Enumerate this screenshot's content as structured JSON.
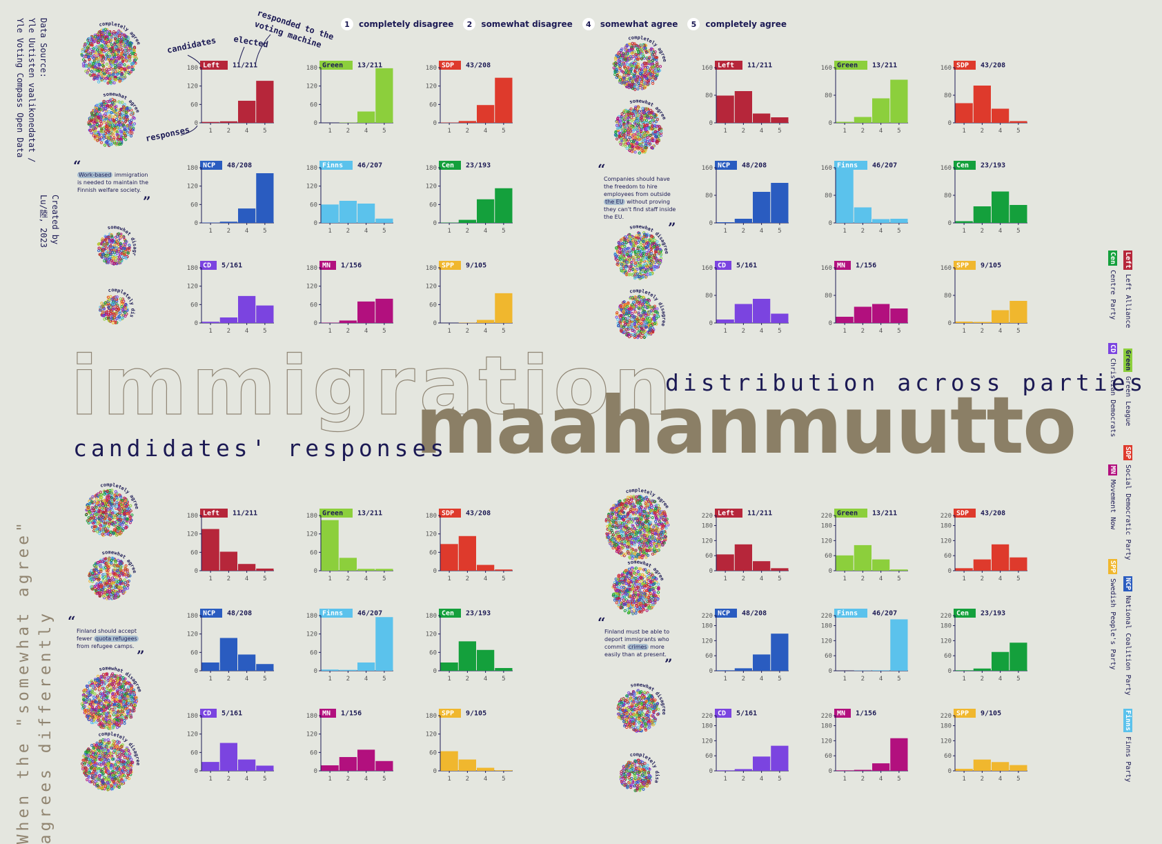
{
  "meta": {
    "source_lines": [
      "Data Source:",
      "Yle Uutisten vaalikonedatat /",
      "Yle Voting Compass Open Data"
    ],
    "created_lines": [
      "Created by",
      "Lu/陸, 2023"
    ],
    "side_note_lines": [
      "When the \"somewhat agree\"",
      "agrees differently"
    ]
  },
  "title": {
    "english": "immigration",
    "finnish": "maahanmuutto",
    "subtitle_a": "distribution across parties",
    "subtitle_b": "candidates' responses"
  },
  "response_legend": [
    {
      "num": "1",
      "label": "completely disagree"
    },
    {
      "num": "2",
      "label": "somewhat disagree"
    },
    {
      "num": "4",
      "label": "somewhat agree"
    },
    {
      "num": "5",
      "label": "completely agree"
    }
  ],
  "annotations": {
    "candidates": "candidates",
    "elected": "elected",
    "responded_1": "responded to the",
    "responded_2": "voting machine",
    "responses": "responses"
  },
  "bubble_labels": {
    "completely_agree": "completely agree",
    "somewhat_agree": "somewhat agree",
    "somewhat_disagree": "somewhat disagree",
    "completely_disagree": "completely disagree"
  },
  "party_legend": [
    {
      "abbr": "Left",
      "name": "Left Alliance",
      "color": "#b6263a"
    },
    {
      "abbr": "Cen",
      "name": "Centre Party",
      "color": "#14a03c"
    },
    {
      "abbr": "Green",
      "name": "Green League",
      "color": "#8ccf3c"
    },
    {
      "abbr": "CD",
      "name": "Christian Democrats",
      "color": "#7b44e0"
    },
    {
      "abbr": "SDP",
      "name": "Social Democratic Party",
      "color": "#de3a2c"
    },
    {
      "abbr": "MN",
      "name": "Movement Now",
      "color": "#b2107e"
    },
    {
      "abbr": "NCP",
      "name": "National Coalition Party",
      "color": "#2a5cc0"
    },
    {
      "abbr": "SPP",
      "name": "Swedish People's Party",
      "color": "#f0b72e"
    },
    {
      "abbr": "Finns",
      "name": "Finns Party",
      "color": "#5bc2ec"
    }
  ],
  "chart_data": [
    {
      "type": "bar",
      "question": "Work-based immigration is needed to maintain the Finnish welfare society.",
      "highlight": "Work-based",
      "categories": [
        "1",
        "2",
        "4",
        "5"
      ],
      "yticks": [
        0,
        60,
        120,
        180
      ],
      "ylim": [
        0,
        180
      ],
      "parties": [
        {
          "abbr": "Left",
          "count": "11/211",
          "color": "#b6263a",
          "values": [
            3,
            5,
            72,
            137
          ]
        },
        {
          "abbr": "Green",
          "count": "13/211",
          "color": "#8ccf3c",
          "values": [
            0,
            1,
            37,
            178
          ]
        },
        {
          "abbr": "SDP",
          "count": "43/208",
          "color": "#de3a2c",
          "values": [
            1,
            6,
            58,
            147
          ]
        },
        {
          "abbr": "NCP",
          "count": "48/208",
          "color": "#2a5cc0",
          "values": [
            1,
            4,
            47,
            162
          ]
        },
        {
          "abbr": "Finns",
          "count": "46/207",
          "color": "#5bc2ec",
          "values": [
            60,
            72,
            63,
            14
          ]
        },
        {
          "abbr": "Cen",
          "count": "23/193",
          "color": "#14a03c",
          "values": [
            1,
            10,
            77,
            113
          ]
        },
        {
          "abbr": "CD",
          "count": "5/161",
          "color": "#7b44e0",
          "values": [
            4,
            18,
            88,
            57
          ]
        },
        {
          "abbr": "MN",
          "count": "1/156",
          "color": "#b2107e",
          "values": [
            1,
            8,
            70,
            79
          ]
        },
        {
          "abbr": "SPP",
          "count": "9/105",
          "color": "#f0b72e",
          "values": [
            0,
            1,
            10,
            97
          ]
        }
      ]
    },
    {
      "type": "bar",
      "question": "Companies should have the freedom to hire employees from outside the EU without proving they can't find staff inside the EU.",
      "highlight": "the EU",
      "categories": [
        "1",
        "2",
        "4",
        "5"
      ],
      "yticks": [
        0,
        80,
        160
      ],
      "ylim": [
        0,
        160
      ],
      "parties": [
        {
          "abbr": "Left",
          "count": "11/211",
          "color": "#b6263a",
          "values": [
            79,
            92,
            27,
            16
          ]
        },
        {
          "abbr": "Green",
          "count": "13/211",
          "color": "#8ccf3c",
          "values": [
            3,
            17,
            71,
            125
          ]
        },
        {
          "abbr": "SDP",
          "count": "43/208",
          "color": "#de3a2c",
          "values": [
            57,
            108,
            41,
            5
          ]
        },
        {
          "abbr": "NCP",
          "count": "48/208",
          "color": "#2a5cc0",
          "values": [
            2,
            12,
            90,
            116
          ]
        },
        {
          "abbr": "Finns",
          "count": "46/207",
          "color": "#5bc2ec",
          "values": [
            155,
            45,
            11,
            12
          ]
        },
        {
          "abbr": "Cen",
          "count": "23/193",
          "color": "#14a03c",
          "values": [
            5,
            48,
            91,
            52
          ]
        },
        {
          "abbr": "CD",
          "count": "5/161",
          "color": "#7b44e0",
          "values": [
            10,
            55,
            70,
            27
          ]
        },
        {
          "abbr": "MN",
          "count": "1/156",
          "color": "#b2107e",
          "values": [
            18,
            47,
            55,
            42
          ]
        },
        {
          "abbr": "SPP",
          "count": "9/105",
          "color": "#f0b72e",
          "values": [
            4,
            3,
            37,
            64
          ]
        }
      ]
    },
    {
      "type": "bar",
      "question": "Finland should accept fewer quota refugees from refugee camps.",
      "highlight": "quota refugees",
      "categories": [
        "1",
        "2",
        "4",
        "5"
      ],
      "yticks": [
        0,
        60,
        120,
        180
      ],
      "ylim": [
        0,
        180
      ],
      "parties": [
        {
          "abbr": "Left",
          "count": "11/211",
          "color": "#b6263a",
          "values": [
            136,
            62,
            22,
            7
          ]
        },
        {
          "abbr": "Green",
          "count": "13/211",
          "color": "#8ccf3c",
          "values": [
            165,
            42,
            6,
            6
          ]
        },
        {
          "abbr": "SDP",
          "count": "43/208",
          "color": "#de3a2c",
          "values": [
            87,
            113,
            19,
            4
          ]
        },
        {
          "abbr": "NCP",
          "count": "48/208",
          "color": "#2a5cc0",
          "values": [
            27,
            107,
            53,
            22
          ]
        },
        {
          "abbr": "Finns",
          "count": "46/207",
          "color": "#5bc2ec",
          "values": [
            4,
            3,
            27,
            175
          ]
        },
        {
          "abbr": "Cen",
          "count": "23/193",
          "color": "#14a03c",
          "values": [
            27,
            96,
            68,
            9
          ]
        },
        {
          "abbr": "CD",
          "count": "5/161",
          "color": "#7b44e0",
          "values": [
            29,
            91,
            37,
            17
          ]
        },
        {
          "abbr": "MN",
          "count": "1/156",
          "color": "#b2107e",
          "values": [
            18,
            45,
            69,
            32
          ]
        },
        {
          "abbr": "SPP",
          "count": "9/105",
          "color": "#f0b72e",
          "values": [
            64,
            37,
            10,
            2
          ]
        }
      ]
    },
    {
      "type": "bar",
      "question": "Finland must be able to deport immigrants who commit crimes more easily than at present.",
      "highlight": "crimes",
      "categories": [
        "1",
        "2",
        "4",
        "5"
      ],
      "yticks": [
        0,
        60,
        120,
        180,
        220
      ],
      "ylim": [
        0,
        220
      ],
      "parties": [
        {
          "abbr": "Left",
          "count": "11/211",
          "color": "#b6263a",
          "values": [
            65,
            105,
            38,
            10
          ]
        },
        {
          "abbr": "Green",
          "count": "13/211",
          "color": "#8ccf3c",
          "values": [
            61,
            102,
            45,
            5
          ]
        },
        {
          "abbr": "SDP",
          "count": "43/208",
          "color": "#de3a2c",
          "values": [
            10,
            45,
            105,
            53
          ]
        },
        {
          "abbr": "NCP",
          "count": "48/208",
          "color": "#2a5cc0",
          "values": [
            2,
            10,
            65,
            148
          ]
        },
        {
          "abbr": "Finns",
          "count": "46/207",
          "color": "#5bc2ec",
          "values": [
            0,
            1,
            2,
            205
          ]
        },
        {
          "abbr": "Cen",
          "count": "23/193",
          "color": "#14a03c",
          "values": [
            2,
            9,
            75,
            112
          ]
        },
        {
          "abbr": "CD",
          "count": "5/161",
          "color": "#7b44e0",
          "values": [
            2,
            7,
            57,
            100
          ]
        },
        {
          "abbr": "MN",
          "count": "1/156",
          "color": "#b2107e",
          "values": [
            2,
            4,
            30,
            130
          ]
        },
        {
          "abbr": "SPP",
          "count": "9/105",
          "color": "#f0b72e",
          "values": [
            8,
            45,
            35,
            23
          ]
        }
      ]
    }
  ]
}
